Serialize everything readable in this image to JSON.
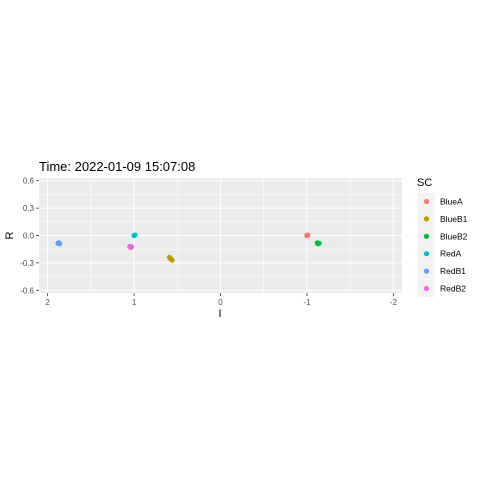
{
  "chart_data": {
    "type": "scatter",
    "title": "Time: 2022-01-09 15:07:08",
    "xlabel": "I",
    "ylabel": "R",
    "x_reversed": true,
    "xlim": [
      2.1,
      -2.1
    ],
    "ylim": [
      -0.63,
      0.63
    ],
    "x_ticks": [
      2,
      1,
      0,
      -1,
      -2
    ],
    "x_tick_labels": [
      "2",
      "1",
      "0",
      "-1",
      "-2"
    ],
    "y_ticks": [
      0.6,
      0.3,
      0.0,
      -0.3,
      -0.6
    ],
    "y_tick_labels": [
      "0.6",
      "0.3",
      "0.0",
      "-0.3",
      "-0.6"
    ],
    "grid": true,
    "legend_title": "SC",
    "legend_position": "right",
    "series": [
      {
        "name": "BlueA",
        "color": "#F8766D",
        "points": [
          [
            -1.0,
            0.0
          ],
          [
            -1.01,
            0.005
          ]
        ]
      },
      {
        "name": "BlueB1",
        "color": "#B79F00",
        "points": [
          [
            0.59,
            -0.24
          ],
          [
            0.58,
            -0.25
          ],
          [
            0.57,
            -0.26
          ],
          [
            0.56,
            -0.27
          ]
        ]
      },
      {
        "name": "BlueB2",
        "color": "#00BA38",
        "points": [
          [
            -1.12,
            -0.08
          ],
          [
            -1.13,
            -0.09
          ],
          [
            -1.14,
            -0.085
          ]
        ]
      },
      {
        "name": "RedA",
        "color": "#00BFC4",
        "points": [
          [
            1.0,
            0.0
          ],
          [
            0.99,
            0.005
          ]
        ]
      },
      {
        "name": "RedB1",
        "color": "#619CFF",
        "points": [
          [
            1.87,
            -0.08
          ],
          [
            1.86,
            -0.09
          ],
          [
            1.88,
            -0.085
          ]
        ]
      },
      {
        "name": "RedB2",
        "color": "#F564E3",
        "points": [
          [
            1.05,
            -0.12
          ],
          [
            1.04,
            -0.13
          ],
          [
            1.03,
            -0.125
          ]
        ]
      }
    ]
  }
}
